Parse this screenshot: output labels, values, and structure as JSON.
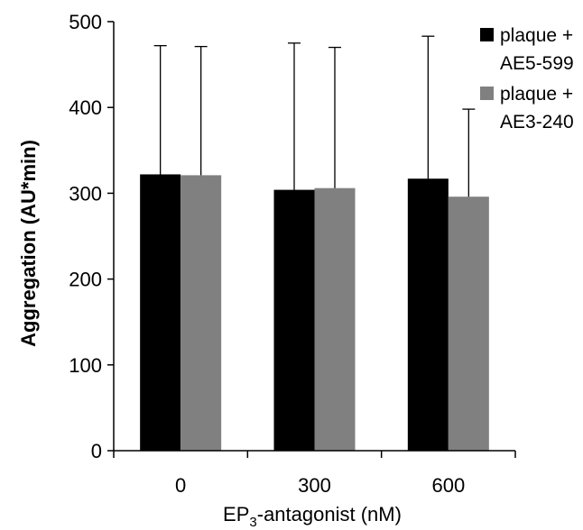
{
  "chart_data": {
    "type": "bar",
    "categories": [
      "0",
      "300",
      "600"
    ],
    "series": [
      {
        "name": "plaque + AE5-599",
        "color": "#000000",
        "values": [
          322,
          304,
          317
        ],
        "errors": [
          150,
          171,
          166
        ]
      },
      {
        "name": "plaque + AE3-240",
        "color": "#808080",
        "values": [
          321,
          306,
          296
        ],
        "errors": [
          150,
          164,
          102
        ]
      }
    ],
    "legend": {
      "position": "top-right",
      "entries": [
        {
          "line1": "plaque +",
          "line2": "AE5-599"
        },
        {
          "line1": "plaque +",
          "line2": "AE3-240"
        }
      ]
    },
    "ylabel": "Aggregation (AU*min)",
    "xlabel": {
      "prefix": "EP",
      "subscript": "3",
      "suffix": "-antagonist (nM)"
    },
    "ylim": [
      0,
      500
    ],
    "yticks": [
      0,
      100,
      200,
      300,
      400,
      500
    ],
    "grid": false
  }
}
